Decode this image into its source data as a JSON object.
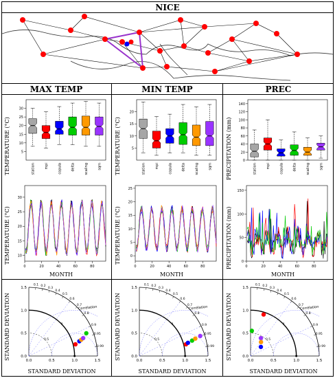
{
  "page": {
    "title": "NICE",
    "columns": [
      "MAX TEMP",
      "MIN TEMP",
      "PREC"
    ]
  },
  "axis_labels": {
    "temperature": "TEMPERATURE (°C)",
    "precipitation": "PRECIPITATION (mm)",
    "month": "MONTH",
    "std_dev": "STANDARD DEVIATION"
  },
  "method_labels": [
    "station",
    "mpi",
    "copula",
    "delta",
    "scaling",
    "sqm"
  ],
  "method_colors": [
    "#a6a6a6",
    "#ff0000",
    "#0000ff",
    "#00cc00",
    "#ff9900",
    "#9933ff"
  ],
  "chart_data": [
    {
      "panel": "map",
      "type": "map",
      "title": "NICE",
      "stations_red": 20,
      "highlight_triangle_color": "#9933cc"
    },
    {
      "panel": "max-temp-boxplot",
      "type": "boxplot",
      "categories": [
        "station",
        "mpi",
        "copula",
        "delta",
        "scaling",
        "sqm"
      ],
      "ylim": [
        0,
        35
      ],
      "yticks": [
        5,
        10,
        15,
        20,
        25,
        30
      ],
      "ylabel": "TEMPERATURE (°C)",
      "boxes": [
        {
          "min": 8,
          "q1": 15.5,
          "med": 20,
          "q3": 24,
          "max": 30
        },
        {
          "min": 7,
          "q1": 12.5,
          "med": 16,
          "q3": 20,
          "max": 28
        },
        {
          "min": 9,
          "q1": 15,
          "med": 18,
          "q3": 22.5,
          "max": 31
        },
        {
          "min": 9,
          "q1": 14.5,
          "med": 19,
          "q3": 25,
          "max": 33
        },
        {
          "min": 8,
          "q1": 14.5,
          "med": 19,
          "q3": 25.5,
          "max": 34
        },
        {
          "min": 8,
          "q1": 14.5,
          "med": 19.5,
          "q3": 25,
          "max": 33
        }
      ]
    },
    {
      "panel": "min-temp-boxplot",
      "type": "boxplot",
      "categories": [
        "station",
        "mpi",
        "copula",
        "delta",
        "scaling",
        "sqm"
      ],
      "ylim": [
        0,
        25
      ],
      "yticks": [
        5,
        10,
        15,
        20
      ],
      "ylabel": "TEMPERATURE (°C)",
      "boxes": [
        {
          "min": 3,
          "q1": 9,
          "med": 13,
          "q3": 17,
          "max": 24
        },
        {
          "min": 2,
          "q1": 5,
          "med": 8,
          "q3": 12,
          "max": 18
        },
        {
          "min": 3,
          "q1": 7,
          "med": 10,
          "q3": 13,
          "max": 19
        },
        {
          "min": 3,
          "q1": 6.5,
          "med": 10.5,
          "q3": 15.5,
          "max": 23
        },
        {
          "min": 2,
          "q1": 6,
          "med": 9.5,
          "q3": 14.5,
          "max": 22
        },
        {
          "min": 2,
          "q1": 6,
          "med": 10,
          "q3": 16,
          "max": 23
        }
      ]
    },
    {
      "panel": "prec-boxplot",
      "type": "boxplot",
      "categories": [
        "station",
        "mpi",
        "copula",
        "delta",
        "scaling",
        "sqm"
      ],
      "ylim": [
        0,
        150
      ],
      "yticks": [
        0,
        20,
        40,
        60,
        80,
        100,
        120,
        140
      ],
      "ylabel": "PRECIPITATION (mm)",
      "boxes": [
        {
          "min": 0,
          "q1": 8,
          "med": 22,
          "q3": 40,
          "max": 75
        },
        {
          "min": 0,
          "q1": 25,
          "med": 40,
          "q3": 55,
          "max": 100
        },
        {
          "min": 0,
          "q1": 10,
          "med": 18,
          "q3": 28,
          "max": 50
        },
        {
          "min": 0,
          "q1": 12,
          "med": 24,
          "q3": 38,
          "max": 70
        },
        {
          "min": 0,
          "q1": 12,
          "med": 20,
          "q3": 32,
          "max": 55
        },
        {
          "min": 5,
          "q1": 25,
          "med": 33,
          "q3": 42,
          "max": 60
        }
      ]
    },
    {
      "panel": "max-temp-series",
      "type": "line",
      "xlabel": "MONTH",
      "xlim": [
        0,
        96
      ],
      "xticks": [
        0,
        20,
        40,
        60,
        80
      ],
      "ylim": [
        8,
        34
      ],
      "yticks": [
        10,
        15,
        20,
        25,
        30
      ],
      "mean": 19.5,
      "amplitude": 8.5,
      "series_colors": [
        "#000000",
        "#ff0000",
        "#0000ff",
        "#00cc00",
        "#ff9900",
        "#9933ff"
      ]
    },
    {
      "panel": "min-temp-series",
      "type": "line",
      "xlabel": "MONTH",
      "xlim": [
        0,
        96
      ],
      "xticks": [
        0,
        20,
        40,
        60,
        80
      ],
      "ylim": [
        -2,
        26
      ],
      "yticks": [
        0,
        5,
        10,
        15,
        20,
        25
      ],
      "mean": 10,
      "amplitude": 7.5,
      "series_colors": [
        "#000000",
        "#ff0000",
        "#0000ff",
        "#00cc00",
        "#ff9900",
        "#9933ff"
      ]
    },
    {
      "panel": "prec-series",
      "type": "line",
      "xlabel": "MONTH",
      "xlim": [
        0,
        96
      ],
      "xticks": [
        0,
        20,
        40,
        60,
        80
      ],
      "ylim": [
        0,
        160
      ],
      "yticks": [
        0,
        50,
        100,
        150
      ],
      "series_colors": [
        "#000000",
        "#ff0000",
        "#0000ff",
        "#00cc00"
      ]
    },
    {
      "panel": "max-temp-taylor",
      "type": "scatter",
      "xlabel": "STANDARD DEVIATION",
      "ylabel": "STANDARD DEVIATION",
      "max_sd": 1.5,
      "correlation_label": "Correlation",
      "correlation_ticks": [
        "0.1",
        "0.2",
        "0.3",
        "0.4",
        "0.5",
        "0.6",
        "0.7",
        "0.8",
        "0.9",
        "0.95",
        "0.99"
      ],
      "points": [
        {
          "sd": 1.05,
          "corr": 0.97,
          "color": "#ff0000"
        },
        {
          "sd": 1.15,
          "corr": 0.96,
          "color": "#0000ff"
        },
        {
          "sd": 1.2,
          "corr": 0.955,
          "color": "#ff9900"
        },
        {
          "sd": 1.25,
          "corr": 0.95,
          "color": "#9933ff"
        },
        {
          "sd": 1.35,
          "corr": 0.93,
          "color": "#00cc00"
        }
      ]
    },
    {
      "panel": "min-temp-taylor",
      "type": "scatter",
      "xlabel": "STANDARD DEVIATION",
      "ylabel": "STANDARD DEVIATION",
      "max_sd": 1.5,
      "correlation_label": "Correlation",
      "correlation_ticks": [
        "0.1",
        "0.2",
        "0.3",
        "0.4",
        "0.5",
        "0.6",
        "0.7",
        "0.8",
        "0.9",
        "0.95",
        "0.99"
      ],
      "points": [
        {
          "sd": 1.05,
          "corr": 0.97,
          "color": "#ff0000"
        },
        {
          "sd": 1.1,
          "corr": 0.965,
          "color": "#0000ff"
        },
        {
          "sd": 1.2,
          "corr": 0.96,
          "color": "#00cc00"
        },
        {
          "sd": 1.28,
          "corr": 0.955,
          "color": "#ff9900"
        },
        {
          "sd": 1.4,
          "corr": 0.95,
          "color": "#9933ff"
        }
      ]
    },
    {
      "panel": "prec-taylor",
      "type": "scatter",
      "xlabel": "STANDARD DEVIATION",
      "ylabel": "STANDARD DEVIATION",
      "max_sd": 1.5,
      "correlation_label": "Correlation",
      "correlation_ticks": [
        "0.1",
        "0.2",
        "0.3",
        "0.4",
        "0.5",
        "0.6",
        "0.7",
        "0.8",
        "0.9",
        "0.95",
        "0.99"
      ],
      "points": [
        {
          "sd": 0.95,
          "corr": 0.3,
          "color": "#ff0000"
        },
        {
          "sd": 0.55,
          "corr": 0.05,
          "color": "#00cc00"
        },
        {
          "sd": 0.45,
          "corr": 0.5,
          "color": "#9933ff"
        },
        {
          "sd": 0.38,
          "corr": 0.6,
          "color": "#ff9900"
        },
        {
          "sd": 0.3,
          "corr": 0.75,
          "color": "#0000ff"
        }
      ]
    }
  ]
}
